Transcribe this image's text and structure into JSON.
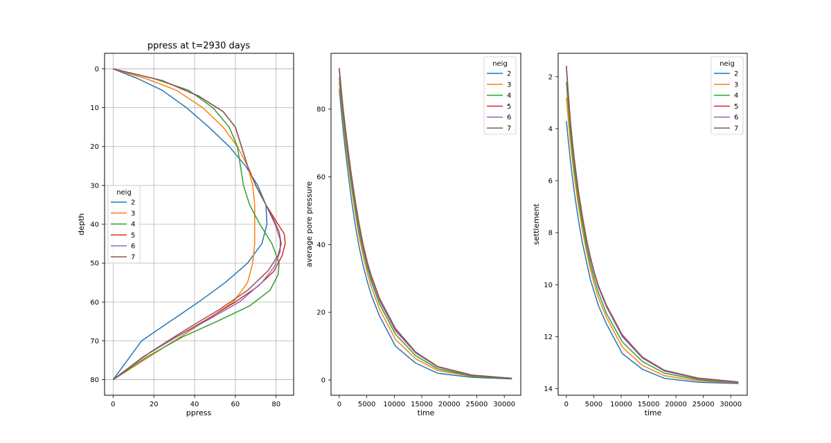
{
  "chart_data": [
    {
      "type": "line",
      "title": "ppress at t=2930 days",
      "xlabel": "ppress",
      "ylabel": "depth",
      "xlim": [
        -4.2,
        88.6
      ],
      "ylim": [
        84.0,
        -4.0
      ],
      "y_inverted": true,
      "grid": true,
      "xticks": [
        0,
        20,
        40,
        60,
        80
      ],
      "yticks": [
        0,
        10,
        20,
        30,
        40,
        50,
        60,
        70,
        80
      ],
      "legend": {
        "title": "neig",
        "placement": "center-left"
      },
      "series": [
        {
          "name": "2",
          "color": "#1f77b4",
          "x": [
            0,
            12,
            24,
            36,
            47,
            57,
            65,
            71,
            75,
            75.5,
            73,
            66,
            55,
            42,
            28,
            14,
            0
          ],
          "y": [
            0,
            2.5,
            5.5,
            10,
            15,
            20,
            25,
            30,
            35,
            40,
            45,
            50,
            55,
            60,
            65,
            70,
            80
          ]
        },
        {
          "name": "3",
          "color": "#ff7f0e",
          "x": [
            0,
            16,
            31,
            44,
            54,
            61,
            66,
            68.5,
            69.5,
            69.5,
            69.5,
            68.5,
            66,
            59,
            45,
            30,
            15,
            0
          ],
          "y": [
            0,
            2.5,
            5.5,
            10,
            15,
            20,
            25,
            30,
            35,
            40,
            45,
            50,
            55,
            60,
            65,
            70,
            75,
            80
          ]
        },
        {
          "name": "4",
          "color": "#2ca02c",
          "x": [
            0,
            20,
            37,
            49,
            57,
            61,
            62.5,
            64,
            67,
            72,
            78,
            81.5,
            81,
            77,
            67,
            51,
            34,
            17,
            0
          ],
          "y": [
            0,
            2.5,
            5.5,
            10,
            15,
            20,
            25,
            30,
            35,
            40,
            45,
            50,
            53,
            57,
            61,
            65,
            69,
            74,
            80
          ]
        },
        {
          "name": "5",
          "color": "#d62728",
          "x": [
            0,
            24,
            42,
            54,
            60,
            63,
            66,
            70,
            75,
            81,
            84,
            84.5,
            83,
            79,
            71,
            60,
            46,
            31,
            15,
            0
          ],
          "y": [
            0,
            3,
            7,
            11,
            15,
            20,
            25,
            30,
            35,
            40,
            42.5,
            45,
            48,
            52,
            56,
            60,
            64.5,
            69,
            74,
            80
          ]
        },
        {
          "name": "6",
          "color": "#9467bd",
          "x": [
            0,
            24,
            42,
            54,
            60,
            63,
            66,
            70,
            75,
            79.5,
            82,
            82,
            79,
            73,
            62,
            47,
            31,
            15,
            0
          ],
          "y": [
            0,
            3,
            7,
            11,
            15,
            20,
            25,
            30,
            35,
            40,
            44,
            47,
            51,
            55,
            60,
            64.5,
            69,
            74,
            80
          ]
        },
        {
          "name": "7",
          "color": "#8c564b",
          "x": [
            0,
            24,
            42,
            54,
            60,
            63,
            66,
            70,
            75,
            79,
            81.5,
            82.5,
            81,
            76,
            66,
            52,
            36,
            18,
            0
          ],
          "y": [
            0,
            3,
            7,
            11,
            15,
            20,
            25,
            30,
            35,
            39,
            42,
            45,
            48,
            52,
            57,
            62,
            67,
            73,
            80
          ]
        }
      ]
    },
    {
      "type": "line",
      "title": "",
      "xlabel": "time",
      "ylabel": "average pore pressure",
      "xlim": [
        -1500,
        33000
      ],
      "ylim": [
        -4.5,
        96.5
      ],
      "grid": false,
      "xticks": [
        0,
        5000,
        10000,
        15000,
        20000,
        25000,
        30000
      ],
      "yticks": [
        0,
        20,
        40,
        60,
        80
      ],
      "legend": {
        "title": "neig",
        "placement": "top-right"
      },
      "series": [
        {
          "name": "2",
          "color": "#1f77b4",
          "x": [
            0,
            365,
            730,
            1095,
            1460,
            2190,
            2930,
            3650,
            4380,
            5110,
            5840,
            7300,
            10220,
            13870,
            17890,
            24090,
            31390
          ],
          "y": [
            86,
            79.5,
            73.5,
            68,
            63,
            53.5,
            45.5,
            39,
            33.5,
            29,
            25,
            19,
            10,
            5,
            2,
            0.8,
            0.3
          ]
        },
        {
          "name": "3",
          "color": "#ff7f0e",
          "x": [
            0,
            365,
            730,
            1095,
            1460,
            2190,
            2930,
            3650,
            4380,
            5110,
            5840,
            7300,
            10220,
            13870,
            17890,
            24090,
            31390
          ],
          "y": [
            88,
            82,
            76,
            71,
            66,
            57,
            49,
            42,
            36.5,
            31.5,
            27.5,
            21,
            12,
            6.3,
            2.8,
            1.1,
            0.4
          ]
        },
        {
          "name": "4",
          "color": "#2ca02c",
          "x": [
            0,
            365,
            730,
            1095,
            1460,
            2190,
            2930,
            3650,
            4380,
            5110,
            5840,
            7300,
            10220,
            13870,
            17890,
            24090,
            31390
          ],
          "y": [
            89.5,
            83.5,
            77.5,
            72.5,
            67.5,
            58.5,
            50.5,
            43.5,
            38,
            33,
            29,
            22.5,
            13.5,
            7.2,
            3.3,
            1.2,
            0.4
          ]
        },
        {
          "name": "5",
          "color": "#d62728",
          "x": [
            0,
            365,
            730,
            1095,
            1460,
            2190,
            2930,
            3650,
            4380,
            5110,
            5840,
            7300,
            10220,
            13870,
            17890,
            24090,
            31390
          ],
          "y": [
            92,
            85.5,
            79.5,
            74.5,
            69.5,
            60.5,
            52.5,
            45.5,
            39.5,
            34.5,
            30.5,
            24,
            15,
            8.2,
            3.9,
            1.4,
            0.5
          ]
        },
        {
          "name": "6",
          "color": "#9467bd",
          "x": [
            0,
            365,
            730,
            1095,
            1460,
            2190,
            2930,
            3650,
            4380,
            5110,
            5840,
            7300,
            10220,
            13870,
            17890,
            24090,
            31390
          ],
          "y": [
            91.5,
            85,
            79,
            74,
            69,
            60,
            52,
            45,
            39,
            34,
            30,
            23.5,
            14.5,
            8,
            3.8,
            1.4,
            0.5
          ]
        },
        {
          "name": "7",
          "color": "#8c564b",
          "x": [
            0,
            365,
            730,
            1095,
            1460,
            2190,
            2930,
            3650,
            4380,
            5110,
            5840,
            7300,
            10220,
            13870,
            17890,
            24090,
            31390
          ],
          "y": [
            92.2,
            85.8,
            79.8,
            74.8,
            69.8,
            60.8,
            52.8,
            45.8,
            39.8,
            34.8,
            30.8,
            24.2,
            15.2,
            8.3,
            4,
            1.5,
            0.5
          ]
        }
      ]
    },
    {
      "type": "line",
      "title": "",
      "xlabel": "time",
      "ylabel": "settlement",
      "xlim": [
        -1500,
        33000
      ],
      "ylim": [
        14.25,
        1.1
      ],
      "y_inverted": true,
      "grid": false,
      "xticks": [
        0,
        5000,
        10000,
        15000,
        20000,
        25000,
        30000
      ],
      "yticks": [
        2,
        4,
        6,
        8,
        10,
        12,
        14
      ],
      "legend": {
        "title": "neig",
        "placement": "top-right"
      },
      "series": [
        {
          "name": "2",
          "color": "#1f77b4",
          "x": [
            0,
            365,
            730,
            1095,
            1460,
            2190,
            2930,
            3650,
            4380,
            5110,
            5840,
            7300,
            10220,
            13870,
            17890,
            24090,
            31390
          ],
          "y": [
            3.7,
            4.5,
            5.2,
            5.85,
            6.45,
            7.5,
            8.4,
            9.1,
            9.8,
            10.3,
            10.8,
            11.5,
            12.65,
            13.25,
            13.6,
            13.75,
            13.8
          ]
        },
        {
          "name": "3",
          "color": "#ff7f0e",
          "x": [
            0,
            365,
            730,
            1095,
            1460,
            2190,
            2930,
            3650,
            4380,
            5110,
            5840,
            7300,
            10220,
            13870,
            17890,
            24090,
            31390
          ],
          "y": [
            2.8,
            3.7,
            4.5,
            5.2,
            5.85,
            6.95,
            7.9,
            8.7,
            9.4,
            10,
            10.5,
            11.25,
            12.4,
            13.1,
            13.5,
            13.7,
            13.78
          ]
        },
        {
          "name": "4",
          "color": "#2ca02c",
          "x": [
            0,
            365,
            730,
            1095,
            1460,
            2190,
            2930,
            3650,
            4380,
            5110,
            5840,
            7300,
            10220,
            13870,
            17890,
            24090,
            31390
          ],
          "y": [
            2.2,
            3.2,
            4.1,
            4.85,
            5.55,
            6.7,
            7.65,
            8.5,
            9.2,
            9.8,
            10.3,
            11.1,
            12.2,
            12.95,
            13.4,
            13.65,
            13.77
          ]
        },
        {
          "name": "5",
          "color": "#d62728",
          "x": [
            0,
            365,
            730,
            1095,
            1460,
            2190,
            2930,
            3650,
            4380,
            5110,
            5840,
            7300,
            10220,
            13870,
            17890,
            24090,
            31390
          ],
          "y": [
            1.6,
            2.75,
            3.7,
            4.5,
            5.2,
            6.4,
            7.4,
            8.25,
            8.95,
            9.55,
            10.05,
            10.8,
            11.95,
            12.8,
            13.3,
            13.6,
            13.75
          ]
        },
        {
          "name": "6",
          "color": "#9467bd",
          "x": [
            0,
            365,
            730,
            1095,
            1460,
            2190,
            2930,
            3650,
            4380,
            5110,
            5840,
            7300,
            10220,
            13870,
            17890,
            24090,
            31390
          ],
          "y": [
            1.65,
            2.8,
            3.75,
            4.55,
            5.25,
            6.45,
            7.45,
            8.3,
            9,
            9.6,
            10.1,
            10.85,
            12,
            12.82,
            13.32,
            13.62,
            13.76
          ]
        },
        {
          "name": "7",
          "color": "#8c564b",
          "x": [
            0,
            365,
            730,
            1095,
            1460,
            2190,
            2930,
            3650,
            4380,
            5110,
            5840,
            7300,
            10220,
            13870,
            17890,
            24090,
            31390
          ],
          "y": [
            1.58,
            2.72,
            3.68,
            4.48,
            5.18,
            6.38,
            7.38,
            8.23,
            8.93,
            9.53,
            10.03,
            10.78,
            11.93,
            12.78,
            13.29,
            13.59,
            13.74
          ]
        }
      ]
    }
  ]
}
